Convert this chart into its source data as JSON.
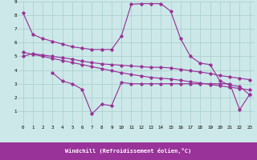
{
  "xlabel": "Windchill (Refroidissement éolien,°C)",
  "bg_color": "#cce8e8",
  "line_color": "#993399",
  "grid_color": "#aacccc",
  "xlim": [
    -0.5,
    23.5
  ],
  "ylim": [
    0,
    9
  ],
  "xticks": [
    0,
    1,
    2,
    3,
    4,
    5,
    6,
    7,
    8,
    9,
    10,
    11,
    12,
    13,
    14,
    15,
    16,
    17,
    18,
    19,
    20,
    21,
    22,
    23
  ],
  "yticks": [
    1,
    2,
    3,
    4,
    5,
    6,
    7,
    8,
    9
  ],
  "line1_x": [
    0,
    1,
    2,
    3,
    4,
    5,
    6,
    7,
    8,
    9,
    10,
    11,
    12,
    13,
    14,
    15,
    16,
    17,
    18,
    19,
    20,
    21,
    22,
    23
  ],
  "line1_y": [
    8.2,
    6.6,
    6.3,
    6.1,
    5.9,
    5.7,
    5.6,
    5.5,
    5.5,
    5.5,
    6.5,
    8.8,
    8.85,
    8.85,
    8.85,
    8.3,
    6.3,
    5.0,
    4.5,
    4.4,
    3.2,
    2.9,
    2.8,
    2.2
  ],
  "line2_x": [
    0,
    1,
    2,
    3,
    4,
    5,
    6,
    7,
    8,
    9,
    10,
    11,
    12,
    13,
    14,
    15,
    16,
    17,
    18,
    19,
    20,
    21,
    22,
    23
  ],
  "line2_y": [
    5.0,
    5.2,
    5.1,
    5.0,
    4.9,
    4.8,
    4.65,
    4.55,
    4.45,
    4.4,
    4.35,
    4.3,
    4.25,
    4.2,
    4.2,
    4.15,
    4.05,
    3.95,
    3.85,
    3.75,
    3.6,
    3.5,
    3.4,
    3.3
  ],
  "line3_x": [
    0,
    1,
    2,
    3,
    4,
    5,
    6,
    7,
    8,
    9,
    10,
    11,
    12,
    13,
    14,
    15,
    16,
    17,
    18,
    19,
    20,
    21,
    22,
    23
  ],
  "line3_y": [
    5.3,
    5.15,
    5.0,
    4.85,
    4.7,
    4.55,
    4.4,
    4.25,
    4.1,
    3.95,
    3.8,
    3.68,
    3.57,
    3.46,
    3.4,
    3.35,
    3.25,
    3.15,
    3.05,
    2.95,
    2.85,
    2.75,
    2.65,
    2.55
  ],
  "line4_x": [
    3,
    4,
    5,
    6,
    7,
    8,
    9,
    10,
    11,
    12,
    13,
    14,
    15,
    16,
    17,
    18,
    19,
    20,
    21,
    22,
    23
  ],
  "line4_y": [
    3.8,
    3.2,
    3.0,
    2.6,
    0.8,
    1.5,
    1.4,
    3.1,
    3.0,
    3.0,
    3.0,
    3.0,
    3.0,
    3.0,
    3.0,
    3.0,
    3.0,
    3.0,
    3.0,
    1.1,
    2.2
  ]
}
